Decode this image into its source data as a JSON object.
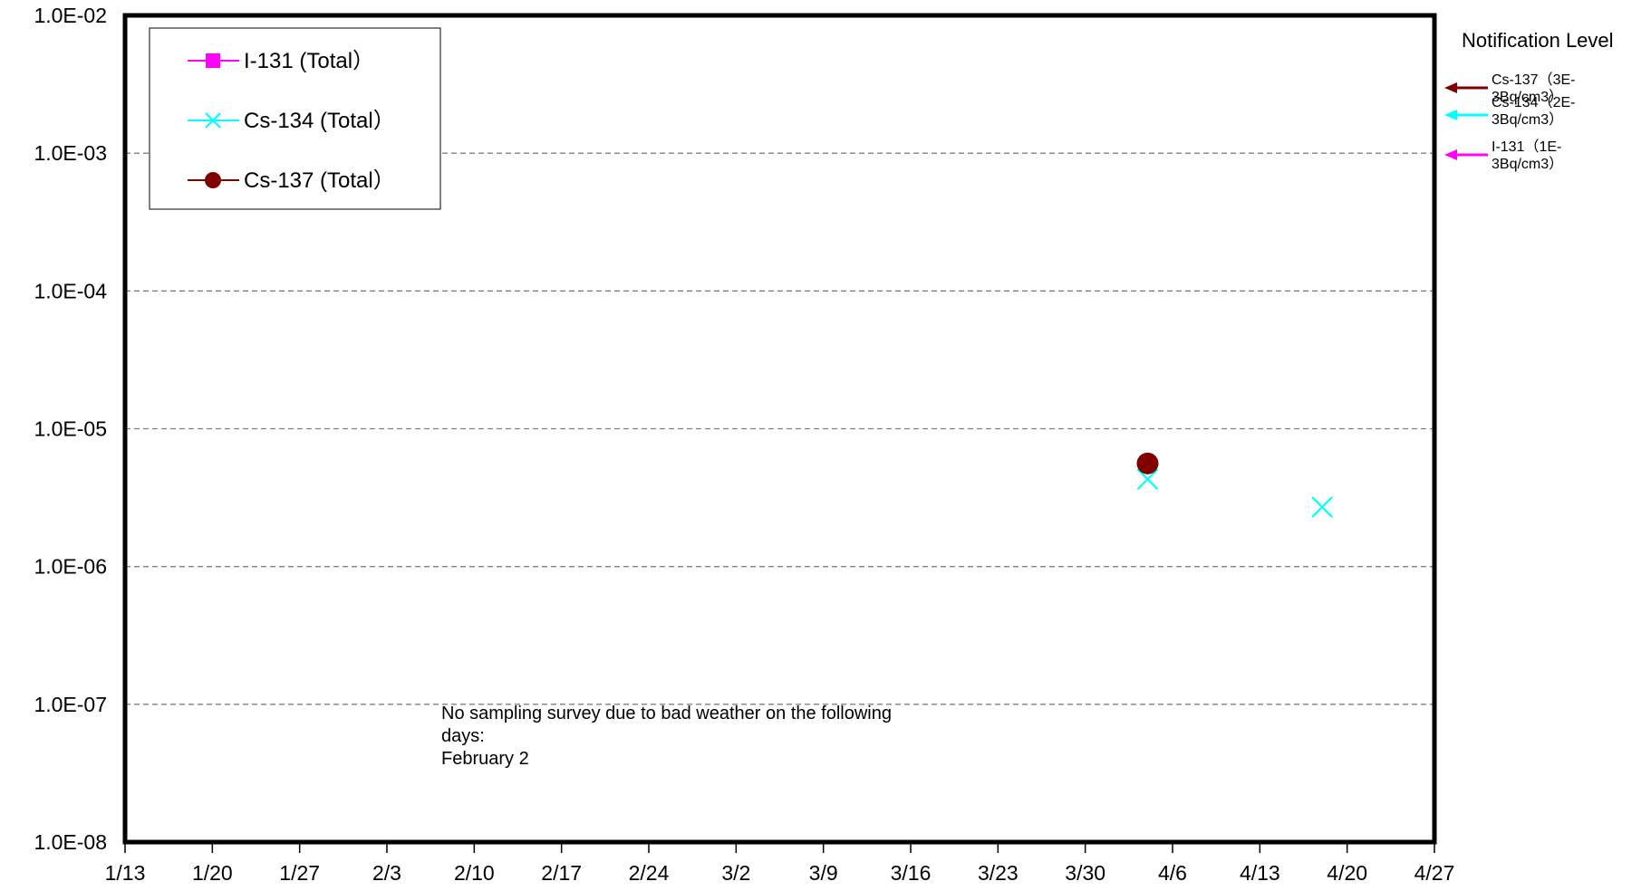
{
  "chart_data": {
    "type": "scatter",
    "y_scale": "log",
    "ylim": [
      "1.0E-08",
      "1.0E-02"
    ],
    "y_ticks": [
      {
        "value": 0.01,
        "label": "1.0E-02"
      },
      {
        "value": 0.001,
        "label": "1.0E-03"
      },
      {
        "value": 0.0001,
        "label": "1.0E-04"
      },
      {
        "value": 1e-05,
        "label": "1.0E-05"
      },
      {
        "value": 1e-06,
        "label": "1.0E-06"
      },
      {
        "value": 1e-07,
        "label": "1.0E-07"
      },
      {
        "value": 1e-08,
        "label": "1.0E-08"
      }
    ],
    "x_tick_labels": [
      "1/13",
      "1/20",
      "1/27",
      "2/3",
      "2/10",
      "2/17",
      "2/24",
      "3/2",
      "3/9",
      "3/16",
      "3/23",
      "3/30",
      "4/6",
      "4/13",
      "4/20",
      "4/27"
    ],
    "grid": "horizontal dashed",
    "legend_position": "top-left",
    "series": [
      {
        "name": "I-131 (Total）",
        "color": "#ff00ff",
        "marker": "square",
        "points": []
      },
      {
        "name": "Cs-134 (Total）",
        "color": "#00ffff",
        "marker": "x",
        "points": [
          {
            "x": "4/5",
            "y": 4.3e-06
          },
          {
            "x": "4/19",
            "y": 2.7e-06
          }
        ]
      },
      {
        "name": "Cs-137 (Total）",
        "color": "#800000",
        "marker": "circle",
        "points": [
          {
            "x": "4/5",
            "y": 5.6e-06
          }
        ]
      }
    ],
    "notification": {
      "title": "Notification Level",
      "levels": [
        {
          "label": "Cs-137（3E-3Bq/cm3）",
          "lines": [
            "Cs-137（3E-",
            "3Bq/cm3）"
          ],
          "value": 0.003,
          "color": "#800000"
        },
        {
          "label": "Cs-134（2E-3Bq/cm3）",
          "lines": [
            "Cs-134（2E-",
            "3Bq/cm3）"
          ],
          "value": 0.002,
          "color": "#00ffff"
        },
        {
          "label": "I-131（1E-3Bq/cm3）",
          "lines": [
            "I-131（1E-",
            "3Bq/cm3）"
          ],
          "value": 0.001,
          "color": "#ff00ff"
        }
      ]
    },
    "annotation": [
      "No sampling survey due to bad weather on the following",
      "days:",
      "February 2"
    ]
  }
}
